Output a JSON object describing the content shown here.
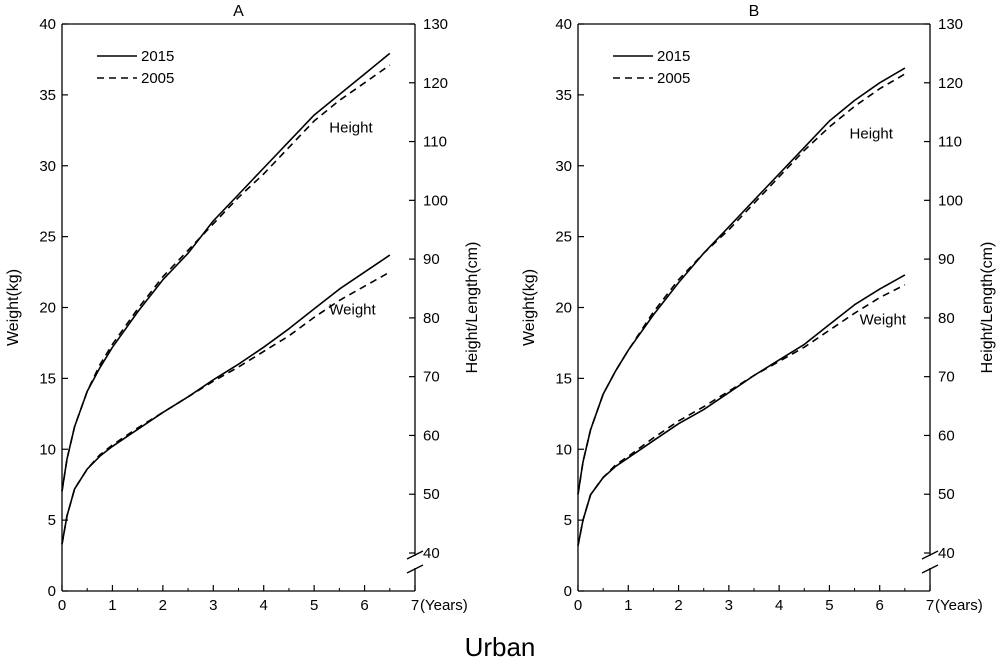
{
  "caption": "Urban",
  "chart_data": [
    {
      "type": "line",
      "title": "A",
      "xlabel": "(Years)",
      "ylabel_left": "Weight(kg)",
      "ylabel_right": "Height/Length(cm)",
      "xlim": [
        0,
        7
      ],
      "xticks": [
        0,
        1,
        2,
        3,
        4,
        5,
        6,
        7
      ],
      "ylim_left": [
        0,
        40
      ],
      "yticks_left": [
        0,
        5,
        10,
        15,
        20,
        25,
        30,
        35,
        40
      ],
      "ylim_right": [
        40,
        130
      ],
      "yticks_right": [
        40,
        50,
        60,
        70,
        80,
        90,
        100,
        110,
        120,
        130
      ],
      "right_axis_break": true,
      "grid": false,
      "legend": {
        "position": "top-left",
        "entries": [
          {
            "label": "2015",
            "style": "solid"
          },
          {
            "label": "2005",
            "style": "dashed"
          }
        ]
      },
      "annotations": [
        {
          "text": "Height",
          "x": 5.3,
          "y_right": 111.5
        },
        {
          "text": "Weight",
          "x": 5.3,
          "y_left": 19.5
        }
      ],
      "series": [
        {
          "name": "2015",
          "measure": "Weight",
          "axis": "left",
          "style": "solid",
          "x": [
            0,
            0.1,
            0.25,
            0.5,
            0.75,
            1,
            1.5,
            2,
            2.5,
            3,
            3.5,
            4,
            4.5,
            5,
            5.5,
            6,
            6.5
          ],
          "y": [
            3.3,
            5.3,
            7.2,
            8.6,
            9.5,
            10.2,
            11.4,
            12.6,
            13.7,
            14.9,
            16.0,
            17.2,
            18.5,
            19.9,
            21.3,
            22.5,
            23.7
          ]
        },
        {
          "name": "2005",
          "measure": "Weight",
          "axis": "left",
          "style": "dashed",
          "x": [
            0,
            0.1,
            0.25,
            0.5,
            0.75,
            1,
            1.5,
            2,
            2.5,
            3,
            3.5,
            4,
            4.5,
            5,
            5.5,
            6,
            6.5
          ],
          "y": [
            3.3,
            5.3,
            7.2,
            8.6,
            9.6,
            10.3,
            11.5,
            12.6,
            13.7,
            14.8,
            15.8,
            16.9,
            18.0,
            19.3,
            20.5,
            21.5,
            22.5
          ]
        },
        {
          "name": "2015",
          "measure": "Height",
          "axis": "right",
          "style": "solid",
          "x": [
            0,
            0.1,
            0.25,
            0.5,
            0.75,
            1,
            1.5,
            2,
            2.5,
            3,
            3.5,
            4,
            4.5,
            5,
            5.5,
            6,
            6.5
          ],
          "y": [
            50.5,
            56.0,
            61.5,
            67.5,
            71.5,
            75.0,
            81.0,
            86.5,
            91.0,
            96.5,
            101.0,
            105.5,
            110.0,
            114.5,
            118.0,
            121.5,
            125.0
          ]
        },
        {
          "name": "2005",
          "measure": "Height",
          "axis": "right",
          "style": "dashed",
          "x": [
            0,
            0.1,
            0.25,
            0.5,
            0.75,
            1,
            1.5,
            2,
            2.5,
            3,
            3.5,
            4,
            4.5,
            5,
            5.5,
            6,
            6.5
          ],
          "y": [
            50.5,
            56.0,
            61.5,
            67.5,
            72.0,
            75.5,
            81.5,
            87.0,
            91.5,
            96.0,
            100.5,
            104.5,
            109.0,
            113.5,
            117.0,
            120.0,
            123.0
          ]
        }
      ]
    },
    {
      "type": "line",
      "title": "B",
      "xlabel": "(Years)",
      "ylabel_left": "Weight(kg)",
      "ylabel_right": "Height/Length(cm)",
      "xlim": [
        0,
        7
      ],
      "xticks": [
        0,
        1,
        2,
        3,
        4,
        5,
        6,
        7
      ],
      "ylim_left": [
        0,
        40
      ],
      "yticks_left": [
        0,
        5,
        10,
        15,
        20,
        25,
        30,
        35,
        40
      ],
      "ylim_right": [
        40,
        130
      ],
      "yticks_right": [
        40,
        50,
        60,
        70,
        80,
        90,
        100,
        110,
        120,
        130
      ],
      "right_axis_break": true,
      "grid": false,
      "legend": {
        "position": "top-left",
        "entries": [
          {
            "label": "2015",
            "style": "solid"
          },
          {
            "label": "2005",
            "style": "dashed"
          }
        ]
      },
      "annotations": [
        {
          "text": "Height",
          "x": 5.4,
          "y_right": 110.5
        },
        {
          "text": "Weight",
          "x": 5.6,
          "y_left": 18.8
        }
      ],
      "series": [
        {
          "name": "2015",
          "measure": "Weight",
          "axis": "left",
          "style": "solid",
          "x": [
            0,
            0.1,
            0.25,
            0.5,
            0.75,
            1,
            1.5,
            2,
            2.5,
            3,
            3.5,
            4,
            4.5,
            5,
            5.5,
            6,
            6.5
          ],
          "y": [
            3.2,
            5.0,
            6.8,
            8.0,
            8.8,
            9.4,
            10.6,
            11.8,
            12.8,
            14.0,
            15.2,
            16.3,
            17.4,
            18.8,
            20.2,
            21.3,
            22.3
          ]
        },
        {
          "name": "2005",
          "measure": "Weight",
          "axis": "left",
          "style": "dashed",
          "x": [
            0,
            0.1,
            0.25,
            0.5,
            0.75,
            1,
            1.5,
            2,
            2.5,
            3,
            3.5,
            4,
            4.5,
            5,
            5.5,
            6,
            6.5
          ],
          "y": [
            3.2,
            5.0,
            6.8,
            8.0,
            8.9,
            9.5,
            10.8,
            12.0,
            13.0,
            14.1,
            15.2,
            16.2,
            17.2,
            18.4,
            19.6,
            20.7,
            21.6
          ]
        },
        {
          "name": "2015",
          "measure": "Height",
          "axis": "right",
          "style": "solid",
          "x": [
            0,
            0.1,
            0.25,
            0.5,
            0.75,
            1,
            1.5,
            2,
            2.5,
            3,
            3.5,
            4,
            4.5,
            5,
            5.5,
            6,
            6.5
          ],
          "y": [
            50.0,
            55.5,
            61.0,
            67.0,
            71.0,
            74.5,
            80.5,
            86.0,
            91.0,
            95.5,
            100.0,
            104.5,
            109.0,
            113.5,
            117.0,
            120.0,
            122.5
          ]
        },
        {
          "name": "2005",
          "measure": "Height",
          "axis": "right",
          "style": "dashed",
          "x": [
            0,
            0.1,
            0.25,
            0.5,
            0.75,
            1,
            1.5,
            2,
            2.5,
            3,
            3.5,
            4,
            4.5,
            5,
            5.5,
            6,
            6.5
          ],
          "y": [
            50.0,
            55.5,
            61.0,
            67.0,
            71.0,
            74.5,
            81.0,
            86.5,
            91.0,
            95.0,
            99.5,
            104.0,
            108.5,
            112.5,
            116.0,
            119.0,
            121.5
          ]
        }
      ]
    }
  ]
}
